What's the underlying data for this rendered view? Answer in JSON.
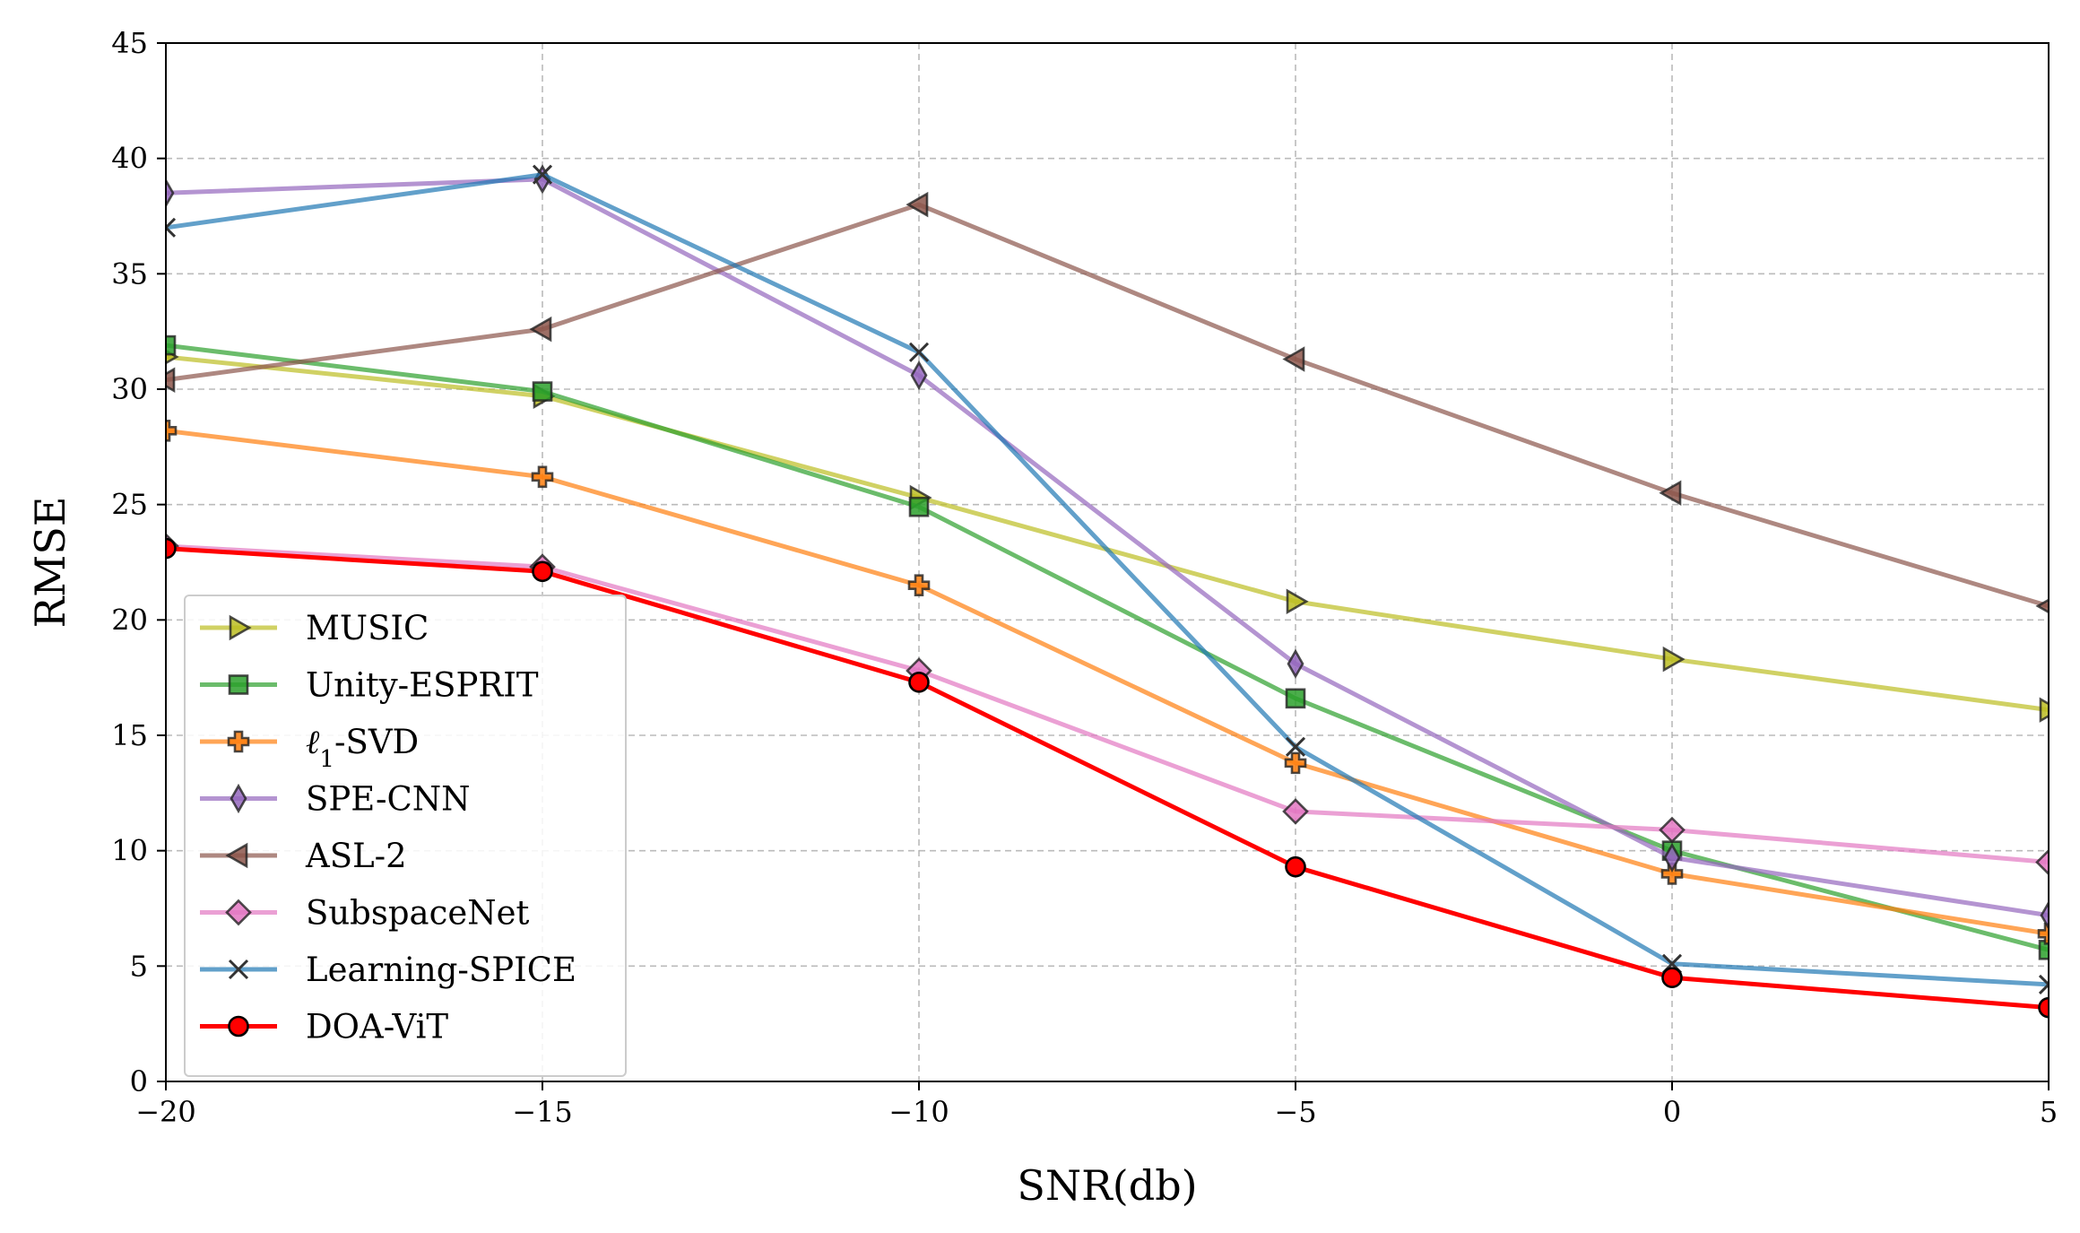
{
  "chart_data": {
    "type": "line",
    "title": "",
    "xlabel": "SNR(db)",
    "ylabel": "RMSE",
    "xlim": [
      -20,
      5
    ],
    "ylim": [
      0,
      45
    ],
    "x_ticks": [
      -20,
      -15,
      -10,
      -5,
      0,
      5
    ],
    "x_tick_labels": [
      "−20",
      "−15",
      "−10",
      "−5",
      "0",
      "5"
    ],
    "y_ticks": [
      0,
      5,
      10,
      15,
      20,
      25,
      30,
      35,
      40,
      45
    ],
    "y_tick_labels": [
      "0",
      "5",
      "10",
      "15",
      "20",
      "25",
      "30",
      "35",
      "40",
      "45"
    ],
    "grid": true,
    "legend_position": "lower-left",
    "x": [
      -20,
      -15,
      -10,
      -5,
      0,
      5
    ],
    "series": [
      {
        "name": "MUSIC",
        "name_main": "MUSIC",
        "name_sub": "",
        "name_rest": "",
        "name_italic": false,
        "values": [
          31.4,
          29.7,
          25.3,
          20.8,
          18.3,
          16.1
        ],
        "color": "#bcbd22",
        "marker": "triangle-right"
      },
      {
        "name": "Unity-ESPRIT",
        "name_main": "Unity-ESPRIT",
        "name_sub": "",
        "name_rest": "",
        "name_italic": false,
        "values": [
          31.9,
          29.9,
          24.9,
          16.6,
          10.0,
          5.7
        ],
        "color": "#2ca02c",
        "marker": "square"
      },
      {
        "name": "ℓ₁-SVD",
        "name_main": "ℓ",
        "name_sub": "1",
        "name_rest": "-SVD",
        "name_italic": true,
        "values": [
          28.2,
          26.2,
          21.5,
          13.8,
          9.0,
          6.4
        ],
        "color": "#ff7f0e",
        "marker": "plus"
      },
      {
        "name": "SPE-CNN",
        "name_main": "SPE-CNN",
        "name_sub": "",
        "name_rest": "",
        "name_italic": false,
        "values": [
          38.5,
          39.1,
          30.6,
          18.1,
          9.7,
          7.2
        ],
        "color": "#9467bd",
        "marker": "thin-diamond"
      },
      {
        "name": "ASL-2",
        "name_main": "ASL-2",
        "name_sub": "",
        "name_rest": "",
        "name_italic": false,
        "values": [
          30.4,
          32.6,
          38.0,
          31.3,
          25.5,
          20.6
        ],
        "color": "#8c564b",
        "marker": "triangle-left"
      },
      {
        "name": "SubspaceNet",
        "name_main": "SubspaceNet",
        "name_sub": "",
        "name_rest": "",
        "name_italic": false,
        "values": [
          23.2,
          22.3,
          17.8,
          11.7,
          10.9,
          9.5
        ],
        "color": "#e377c2",
        "marker": "diamond"
      },
      {
        "name": "Learning-SPICE",
        "name_main": "Learning-SPICE",
        "name_sub": "",
        "name_rest": "",
        "name_italic": false,
        "values": [
          37.0,
          39.3,
          31.6,
          14.5,
          5.1,
          4.2
        ],
        "color": "#1f77b4",
        "marker": "x"
      },
      {
        "name": "DOA-ViT",
        "name_main": "DOA-ViT",
        "name_sub": "",
        "name_rest": "",
        "name_italic": false,
        "values": [
          23.1,
          22.1,
          17.3,
          9.3,
          4.5,
          3.2
        ],
        "color": "#ff0000",
        "marker": "circle"
      }
    ]
  }
}
